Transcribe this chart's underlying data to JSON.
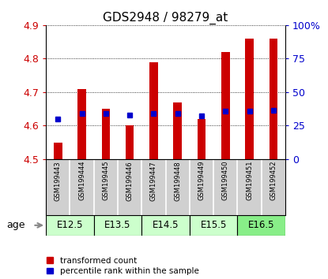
{
  "title": "GDS2948 / 98279_at",
  "samples": [
    "GSM199443",
    "GSM199444",
    "GSM199445",
    "GSM199446",
    "GSM199447",
    "GSM199448",
    "GSM199449",
    "GSM199450",
    "GSM199451",
    "GSM199452"
  ],
  "red_values": [
    4.55,
    4.71,
    4.65,
    4.6,
    4.79,
    4.67,
    4.62,
    4.82,
    4.86,
    4.86
  ],
  "blue_values": [
    4.62,
    4.635,
    4.635,
    4.632,
    4.637,
    4.635,
    4.628,
    4.642,
    4.644,
    4.645
  ],
  "y_min": 4.5,
  "y_max": 4.9,
  "y_ticks": [
    4.5,
    4.6,
    4.7,
    4.8,
    4.9
  ],
  "y2_ticks": [
    0,
    25,
    50,
    75,
    100
  ],
  "y2_labels": [
    "0",
    "25",
    "50",
    "75",
    "100%"
  ],
  "age_groups": [
    {
      "label": "E12.5",
      "start": 0,
      "end": 2,
      "color": "#ccffcc"
    },
    {
      "label": "E13.5",
      "start": 2,
      "end": 4,
      "color": "#ccffcc"
    },
    {
      "label": "E14.5",
      "start": 4,
      "end": 6,
      "color": "#ccffcc"
    },
    {
      "label": "E15.5",
      "start": 6,
      "end": 8,
      "color": "#ccffcc"
    },
    {
      "label": "E16.5",
      "start": 8,
      "end": 10,
      "color": "#88ee88"
    }
  ],
  "bar_color": "#cc0000",
  "blue_color": "#0000cc",
  "bar_width": 0.35,
  "blue_marker_size": 4,
  "background_color": "#ffffff",
  "plot_bg_color": "#ffffff",
  "grid_color": "#000000",
  "ylabel_color": "#cc0000",
  "y2label_color": "#0000cc",
  "gsm_bg_color": "#d0d0d0",
  "legend_red_label": "transformed count",
  "legend_blue_label": "percentile rank within the sample"
}
